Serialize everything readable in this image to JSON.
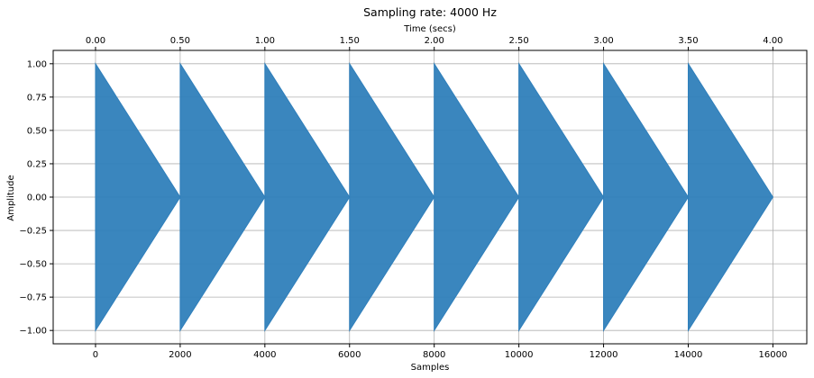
{
  "chart_data": {
    "type": "area",
    "title": "Sampling rate: 4000 Hz",
    "xlabel": "Samples",
    "ylabel": "Amplitude",
    "x2label": "Time (secs)",
    "xlim": [
      -1000,
      16800
    ],
    "ylim": [
      -1.1,
      1.1
    ],
    "x_ticks": [
      0,
      2000,
      4000,
      6000,
      8000,
      10000,
      12000,
      14000,
      16000
    ],
    "x_tick_labels": [
      "0",
      "2000",
      "4000",
      "6000",
      "8000",
      "10000",
      "12000",
      "14000",
      "16000"
    ],
    "x2_ticks": [
      0.0,
      0.5,
      1.0,
      1.5,
      2.0,
      2.5,
      3.0,
      3.5,
      4.0
    ],
    "x2_tick_labels": [
      "0.00",
      "0.50",
      "1.00",
      "1.50",
      "2.00",
      "2.50",
      "3.00",
      "3.50",
      "4.00"
    ],
    "y_ticks": [
      -1.0,
      -0.75,
      -0.5,
      -0.25,
      0.0,
      0.25,
      0.5,
      0.75,
      1.0
    ],
    "y_tick_labels": [
      "−1.00",
      "−0.75",
      "−0.50",
      "−0.25",
      "0.00",
      "0.25",
      "0.50",
      "0.75",
      "1.00"
    ],
    "grid": true,
    "series": [
      {
        "segments": [
          {
            "start": 0,
            "end": 2000,
            "peak": 1.0
          },
          {
            "start": 2000,
            "end": 4000,
            "peak": 1.0
          },
          {
            "start": 4000,
            "end": 6000,
            "peak": 1.0
          },
          {
            "start": 6000,
            "end": 8000,
            "peak": 1.0
          },
          {
            "start": 8000,
            "end": 10000,
            "peak": 1.0
          },
          {
            "start": 10000,
            "end": 12000,
            "peak": 1.0
          },
          {
            "start": 12000,
            "end": 14000,
            "peak": 1.0
          },
          {
            "start": 14000,
            "end": 16000,
            "peak": 1.0
          }
        ]
      }
    ],
    "colors": {
      "series": "#2f7fbb",
      "grid": "#b0b0b0",
      "axis": "#000000"
    }
  }
}
